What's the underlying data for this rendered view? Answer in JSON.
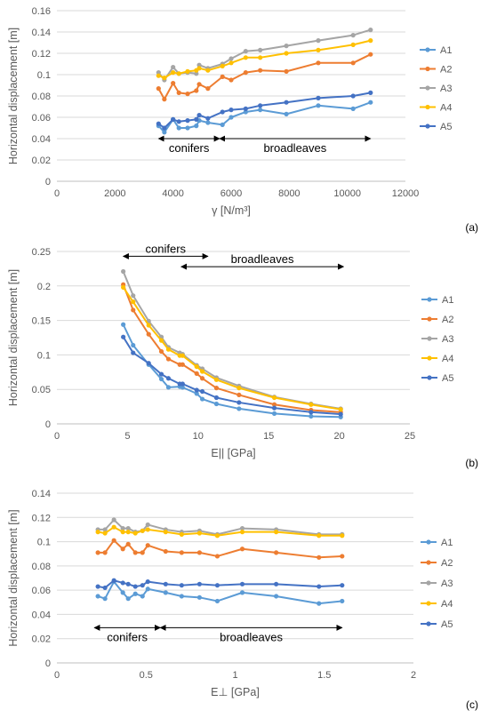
{
  "chart_data": [
    {
      "type": "line",
      "panel_label": "(a)",
      "xlabel": "γ [N/m³]",
      "ylabel": "Horizontal displacement [m]",
      "xlim": [
        0,
        12000
      ],
      "ylim": [
        0,
        0.16
      ],
      "xticks": [
        "0",
        "2000",
        "4000",
        "6000",
        "8000",
        "10000",
        "12000"
      ],
      "yticks": [
        "0",
        "0.02",
        "0.04",
        "0.06",
        "0.08",
        "0.1",
        "0.12",
        "0.14",
        "0.16"
      ],
      "grid": true,
      "legend": "right",
      "x": [
        3500,
        3700,
        4000,
        4200,
        4500,
        4800,
        4900,
        5200,
        5700,
        6000,
        6500,
        7000,
        7900,
        9000,
        10200,
        10800
      ],
      "series": [
        {
          "name": "A1",
          "color": "#5B9BD5",
          "values": [
            0.052,
            0.046,
            0.058,
            0.05,
            0.05,
            0.052,
            0.057,
            0.055,
            0.053,
            0.06,
            0.065,
            0.067,
            0.063,
            0.071,
            0.068,
            0.074
          ]
        },
        {
          "name": "A2",
          "color": "#ED7D31",
          "values": [
            0.087,
            0.077,
            0.092,
            0.083,
            0.082,
            0.085,
            0.091,
            0.087,
            0.098,
            0.095,
            0.102,
            0.104,
            0.103,
            0.111,
            0.111,
            0.119
          ]
        },
        {
          "name": "A3",
          "color": "#A5A5A5",
          "values": [
            0.102,
            0.095,
            0.107,
            0.101,
            0.102,
            0.101,
            0.109,
            0.106,
            0.11,
            0.115,
            0.122,
            0.123,
            0.127,
            0.132,
            0.137,
            0.142
          ]
        },
        {
          "name": "A4",
          "color": "#FFC000",
          "values": [
            0.099,
            0.097,
            0.102,
            0.101,
            0.103,
            0.104,
            0.106,
            0.104,
            0.108,
            0.111,
            0.116,
            0.116,
            0.12,
            0.123,
            0.128,
            0.132
          ]
        },
        {
          "name": "A5",
          "color": "#4472C4",
          "values": [
            0.054,
            0.05,
            0.058,
            0.056,
            0.057,
            0.058,
            0.062,
            0.059,
            0.065,
            0.067,
            0.068,
            0.071,
            0.074,
            0.078,
            0.08,
            0.083
          ]
        }
      ],
      "annotations": [
        {
          "label": "conifers",
          "from": 3500,
          "to": 5600,
          "y": 0.04
        },
        {
          "label": "broadleaves",
          "from": 5600,
          "to": 10800,
          "y": 0.04
        }
      ]
    },
    {
      "type": "line",
      "panel_label": "(b)",
      "xlabel": "E|| [GPa]",
      "ylabel": "Horizontal displacement [m]",
      "xlim": [
        0,
        25
      ],
      "ylim": [
        0,
        0.25
      ],
      "xticks": [
        "0",
        "5",
        "10",
        "15",
        "20",
        "25"
      ],
      "yticks": [
        "0",
        "0.05",
        "0.1",
        "0.15",
        "0.2",
        "0.25"
      ],
      "grid": true,
      "legend": "right",
      "x": [
        4.7,
        5.4,
        6.5,
        7.4,
        7.9,
        8.7,
        8.9,
        9.9,
        10.3,
        11.3,
        12.9,
        15.4,
        18.0,
        20.1
      ],
      "series": [
        {
          "name": "A1",
          "color": "#5B9BD5",
          "values": [
            0.144,
            0.114,
            0.086,
            0.065,
            0.053,
            0.054,
            0.053,
            0.044,
            0.036,
            0.029,
            0.022,
            0.015,
            0.011,
            0.01
          ]
        },
        {
          "name": "A2",
          "color": "#ED7D31",
          "values": [
            0.202,
            0.165,
            0.13,
            0.105,
            0.094,
            0.086,
            0.086,
            0.073,
            0.066,
            0.052,
            0.042,
            0.028,
            0.02,
            0.017
          ]
        },
        {
          "name": "A3",
          "color": "#A5A5A5",
          "values": [
            0.221,
            0.186,
            0.149,
            0.126,
            0.111,
            0.103,
            0.101,
            0.085,
            0.08,
            0.067,
            0.055,
            0.039,
            0.029,
            0.022
          ]
        },
        {
          "name": "A4",
          "color": "#FFC000",
          "values": [
            0.198,
            0.177,
            0.143,
            0.121,
            0.108,
            0.099,
            0.099,
            0.083,
            0.076,
            0.064,
            0.052,
            0.038,
            0.028,
            0.021
          ]
        },
        {
          "name": "A5",
          "color": "#4472C4",
          "values": [
            0.126,
            0.103,
            0.088,
            0.072,
            0.066,
            0.058,
            0.058,
            0.049,
            0.047,
            0.038,
            0.031,
            0.023,
            0.017,
            0.014
          ]
        }
      ],
      "annotations": [
        {
          "label": "conifers",
          "from": 4.7,
          "to": 10.7,
          "y": 0.243
        },
        {
          "label": "broadleaves",
          "from": 8.8,
          "to": 20.3,
          "y": 0.228
        }
      ]
    },
    {
      "type": "line",
      "panel_label": "(c)",
      "xlabel": "E⊥ [GPa]",
      "ylabel": "Horizontal displacement [m]",
      "xlim": [
        0,
        2
      ],
      "ylim": [
        0,
        0.14
      ],
      "xticks": [
        "0",
        "0.5",
        "1",
        "1.5",
        "2"
      ],
      "yticks": [
        "0",
        "0.02",
        "0.04",
        "0.06",
        "0.08",
        "0.1",
        "0.12",
        "0.14"
      ],
      "grid": true,
      "legend": "right",
      "x": [
        0.23,
        0.27,
        0.32,
        0.37,
        0.4,
        0.44,
        0.48,
        0.51,
        0.61,
        0.7,
        0.8,
        0.9,
        1.04,
        1.23,
        1.47,
        1.6
      ],
      "series": [
        {
          "name": "A1",
          "color": "#5B9BD5",
          "values": [
            0.055,
            0.053,
            0.067,
            0.058,
            0.053,
            0.057,
            0.055,
            0.061,
            0.058,
            0.055,
            0.054,
            0.051,
            0.058,
            0.055,
            0.049,
            0.051
          ]
        },
        {
          "name": "A2",
          "color": "#ED7D31",
          "values": [
            0.091,
            0.091,
            0.101,
            0.094,
            0.098,
            0.091,
            0.091,
            0.097,
            0.092,
            0.091,
            0.091,
            0.088,
            0.094,
            0.091,
            0.087,
            0.088
          ]
        },
        {
          "name": "A3",
          "color": "#A5A5A5",
          "values": [
            0.11,
            0.11,
            0.118,
            0.111,
            0.111,
            0.108,
            0.109,
            0.114,
            0.11,
            0.108,
            0.109,
            0.106,
            0.111,
            0.11,
            0.106,
            0.106
          ]
        },
        {
          "name": "A4",
          "color": "#FFC000",
          "values": [
            0.108,
            0.107,
            0.112,
            0.108,
            0.108,
            0.107,
            0.109,
            0.11,
            0.108,
            0.106,
            0.107,
            0.105,
            0.108,
            0.108,
            0.105,
            0.105
          ]
        },
        {
          "name": "A5",
          "color": "#4472C4",
          "values": [
            0.063,
            0.062,
            0.068,
            0.066,
            0.065,
            0.063,
            0.064,
            0.067,
            0.065,
            0.064,
            0.065,
            0.064,
            0.065,
            0.065,
            0.063,
            0.064
          ]
        }
      ],
      "annotations": [
        {
          "label": "conifers",
          "from": 0.21,
          "to": 0.58,
          "y": 0.029
        },
        {
          "label": "broadleaves",
          "from": 0.58,
          "to": 1.6,
          "y": 0.029
        }
      ]
    }
  ]
}
